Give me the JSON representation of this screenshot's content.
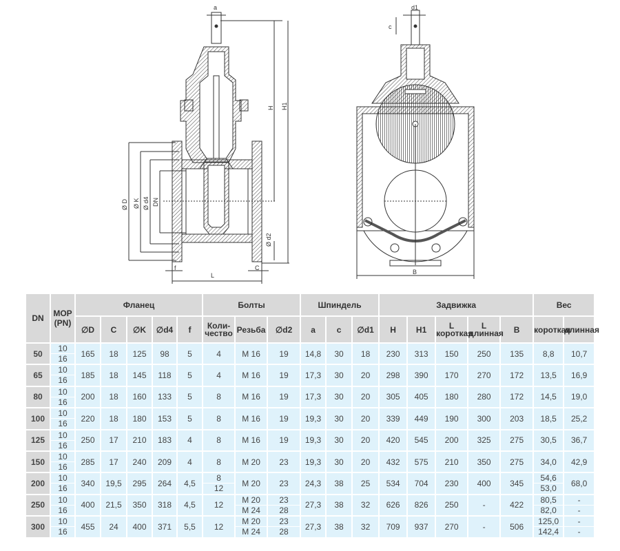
{
  "drawing": {
    "left_view_labels": {
      "a": "a",
      "H": "H",
      "H1": "H1",
      "D": "Ø D",
      "K": "Ø K",
      "d4": "Ø d4",
      "DN": "DN",
      "d2": "Ø d2",
      "f": "f",
      "C": "C",
      "L": "L"
    },
    "right_view_labels": {
      "d1": "d1",
      "c": "c",
      "B": "B"
    }
  },
  "table": {
    "header_groups": {
      "dn": "DN",
      "mop": "МОР",
      "pn": "(PN)",
      "flange": "Фланец",
      "bolts": "Болты",
      "spindle": "Шпиндель",
      "valve": "Задвижка",
      "weight": "Вес"
    },
    "columns": [
      "∅D",
      "C",
      "∅K",
      "∅d4",
      "f",
      "Коли-чество",
      "Резьба",
      "∅d2",
      "a",
      "c",
      "∅d1",
      "H",
      "H1",
      "L короткая",
      "L длинная",
      "B",
      "короткая",
      "длинная"
    ],
    "columns_display": [
      {
        "t": "∅D"
      },
      {
        "t": "C"
      },
      {
        "t": "∅K"
      },
      {
        "t": "∅d4"
      },
      {
        "t": "f"
      },
      {
        "t": "Коли-",
        "b": "чество",
        "cls": "small"
      },
      {
        "t": "Резьба"
      },
      {
        "t": "∅d2"
      },
      {
        "t": "a"
      },
      {
        "t": "c"
      },
      {
        "t": "∅d1"
      },
      {
        "t": "H"
      },
      {
        "t": "H1"
      },
      {
        "t": "L",
        "b": "короткая",
        "cls": "small"
      },
      {
        "t": "L",
        "b": "длинная",
        "cls": "small"
      },
      {
        "t": "B"
      },
      {
        "t": "короткая",
        "cls": "tiny"
      },
      {
        "t": "длинная",
        "cls": "tiny"
      }
    ],
    "rows": [
      {
        "dn": "50",
        "pn": [
          "10",
          "16"
        ],
        "values": [
          "165",
          "18",
          "125",
          "98",
          "5",
          "4",
          "M 16",
          "19",
          "14,8",
          "30",
          "18",
          "230",
          "313",
          "150",
          "250",
          "135",
          "8,8",
          "10,7"
        ]
      },
      {
        "dn": "65",
        "pn": [
          "10",
          "16"
        ],
        "values": [
          "185",
          "18",
          "145",
          "118",
          "5",
          "4",
          "M 16",
          "19",
          "17,3",
          "30",
          "20",
          "298",
          "390",
          "170",
          "270",
          "172",
          "13,5",
          "16,9"
        ]
      },
      {
        "dn": "80",
        "pn": [
          "10",
          "16"
        ],
        "values": [
          "200",
          "18",
          "160",
          "133",
          "5",
          "8",
          "M 16",
          "19",
          "17,3",
          "30",
          "20",
          "305",
          "405",
          "180",
          "280",
          "172",
          "14,5",
          "19,0"
        ]
      },
      {
        "dn": "100",
        "pn": [
          "10",
          "16"
        ],
        "values": [
          "220",
          "18",
          "180",
          "153",
          "5",
          "8",
          "M 16",
          "19",
          "19,3",
          "30",
          "20",
          "339",
          "449",
          "190",
          "300",
          "203",
          "18,5",
          "25,2"
        ]
      },
      {
        "dn": "125",
        "pn": [
          "10",
          "16"
        ],
        "values": [
          "250",
          "17",
          "210",
          "183",
          "4",
          "8",
          "M 16",
          "19",
          "19,3",
          "30",
          "20",
          "420",
          "545",
          "200",
          "325",
          "275",
          "30,5",
          "36,7"
        ]
      },
      {
        "dn": "150",
        "pn": [
          "10",
          "16"
        ],
        "values": [
          "285",
          "17",
          "240",
          "209",
          "4",
          "8",
          "M 20",
          "23",
          "19,3",
          "30",
          "20",
          "432",
          "575",
          "210",
          "350",
          "275",
          "34,0",
          "42,9"
        ]
      },
      {
        "dn": "200",
        "pn": [
          "10",
          "16"
        ],
        "values": [
          "340",
          "19,5",
          "295",
          "264",
          "4,5",
          [
            "8",
            "12"
          ],
          "M 20",
          "23",
          "24,3",
          "38",
          "25",
          "534",
          "704",
          "230",
          "400",
          "345",
          [
            "54,6",
            "53,0"
          ],
          "68,0"
        ]
      },
      {
        "dn": "250",
        "pn": [
          "10",
          "16"
        ],
        "values": [
          "400",
          "21,5",
          "350",
          "318",
          "4,5",
          "12",
          [
            "M 20",
            "M 24"
          ],
          [
            "23",
            "28"
          ],
          "27,3",
          "38",
          "32",
          "626",
          "826",
          "250",
          "-",
          "422",
          [
            "80,5",
            "82,0"
          ],
          [
            "-",
            "-"
          ]
        ]
      },
      {
        "dn": "300",
        "pn": [
          "10",
          "16"
        ],
        "values": [
          "455",
          "24",
          "400",
          "371",
          "5,5",
          "12",
          [
            "M 20",
            "M 24"
          ],
          [
            "23",
            "28"
          ],
          "27,3",
          "38",
          "32",
          "709",
          "937",
          "270",
          "-",
          "506",
          [
            "125,0",
            "142,4"
          ],
          [
            "-",
            "-"
          ]
        ]
      }
    ]
  },
  "colors": {
    "header_bg": "#d9d9d9",
    "cell_bg": "#dff2fb",
    "line": "#333333"
  }
}
